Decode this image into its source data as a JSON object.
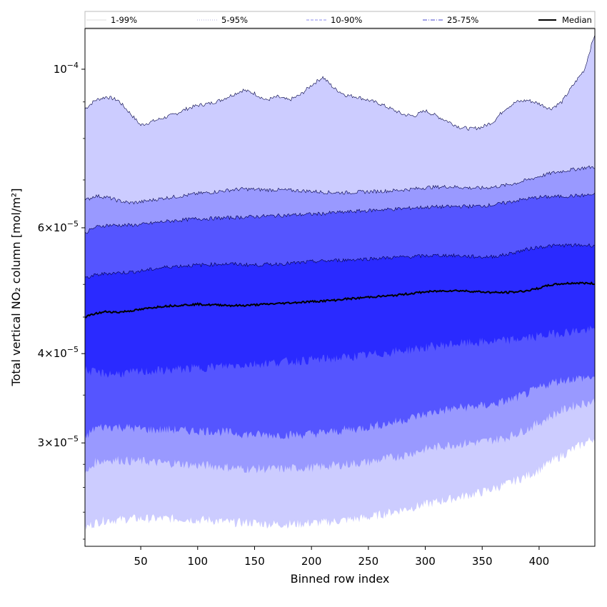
{
  "chart_data": {
    "type": "area",
    "title": "",
    "xlabel": "Binned row index",
    "ylabel": "Total vertical NO₂ column [mol/m²]",
    "xlim": [
      1,
      449
    ],
    "ylim": [
      2.15e-05,
      0.000114
    ],
    "yscale": "log",
    "x_ticks": [
      50,
      100,
      150,
      200,
      250,
      300,
      350,
      400
    ],
    "y_ticks": [
      {
        "value": 3e-05,
        "mantissa": "3",
        "times": "×",
        "base": "10",
        "exp": "−5"
      },
      {
        "value": 4e-05,
        "mantissa": "4",
        "times": "×",
        "base": "10",
        "exp": "−5"
      },
      {
        "value": 6e-05,
        "mantissa": "6",
        "times": "×",
        "base": "10",
        "exp": "−5"
      },
      {
        "value": 0.0001,
        "mantissa": "",
        "times": "",
        "base": "10",
        "exp": "−4"
      }
    ],
    "y_minor_ticks": [
      2.2e-05,
      2.4e-05,
      2.6e-05,
      2.8e-05,
      3.5e-05,
      4.5e-05,
      5e-05,
      7e-05,
      8e-05,
      9e-05
    ],
    "x": [
      1,
      10,
      20,
      30,
      40,
      50,
      60,
      70,
      80,
      90,
      100,
      110,
      120,
      130,
      140,
      150,
      160,
      170,
      180,
      190,
      200,
      210,
      220,
      230,
      240,
      250,
      260,
      270,
      280,
      290,
      300,
      310,
      320,
      330,
      340,
      350,
      360,
      370,
      380,
      390,
      400,
      410,
      420,
      430,
      440,
      449
    ],
    "series": [
      {
        "name": "1-99%",
        "color": "#ccccff",
        "lower": [
          2.28e-05,
          2.32e-05,
          2.34e-05,
          2.34e-05,
          2.35e-05,
          2.35e-05,
          2.35e-05,
          2.35e-05,
          2.35e-05,
          2.35e-05,
          2.34e-05,
          2.34e-05,
          2.33e-05,
          2.32e-05,
          2.32e-05,
          2.32e-05,
          2.31e-05,
          2.31e-05,
          2.31e-05,
          2.31e-05,
          2.32e-05,
          2.32e-05,
          2.33e-05,
          2.34e-05,
          2.35e-05,
          2.36e-05,
          2.38e-05,
          2.4e-05,
          2.42e-05,
          2.44e-05,
          2.46e-05,
          2.48e-05,
          2.5e-05,
          2.52e-05,
          2.54e-05,
          2.56e-05,
          2.59e-05,
          2.62e-05,
          2.66e-05,
          2.7e-05,
          2.75e-05,
          2.82e-05,
          2.88e-05,
          2.94e-05,
          3e-05,
          3.05e-05
        ],
        "upper": [
          8.8e-05,
          9.05e-05,
          9.15e-05,
          9.05e-05,
          8.7e-05,
          8.35e-05,
          8.45e-05,
          8.55e-05,
          8.65e-05,
          8.8e-05,
          8.9e-05,
          8.95e-05,
          9.05e-05,
          9.2e-05,
          9.35e-05,
          9.25e-05,
          9.05e-05,
          9.15e-05,
          9.05e-05,
          9.2e-05,
          9.5e-05,
          9.75e-05,
          9.4e-05,
          9.2e-05,
          9.15e-05,
          9.05e-05,
          8.95e-05,
          8.8e-05,
          8.65e-05,
          8.6e-05,
          8.75e-05,
          8.6e-05,
          8.45e-05,
          8.3e-05,
          8.25e-05,
          8.3e-05,
          8.45e-05,
          8.8e-05,
          9e-05,
          9.05e-05,
          8.95e-05,
          8.8e-05,
          9e-05,
          9.5e-05,
          0.0001,
          0.000112
        ]
      },
      {
        "name": "5-95%",
        "color": "#9999ff",
        "lower": [
          2.7e-05,
          2.82e-05,
          2.84e-05,
          2.84e-05,
          2.83e-05,
          2.83e-05,
          2.82e-05,
          2.81e-05,
          2.81e-05,
          2.8e-05,
          2.79e-05,
          2.79e-05,
          2.78e-05,
          2.77e-05,
          2.76e-05,
          2.76e-05,
          2.76e-05,
          2.76e-05,
          2.76e-05,
          2.77e-05,
          2.77e-05,
          2.78e-05,
          2.79e-05,
          2.8e-05,
          2.81e-05,
          2.82e-05,
          2.84e-05,
          2.86e-05,
          2.88e-05,
          2.91e-05,
          2.94e-05,
          2.96e-05,
          2.98e-05,
          2.99e-05,
          3e-05,
          3.01e-05,
          3.03e-05,
          3.05e-05,
          3.09e-05,
          3.14e-05,
          3.2e-05,
          3.27e-05,
          3.33e-05,
          3.38e-05,
          3.41e-05,
          3.43e-05
        ],
        "upper": [
          6.55e-05,
          6.65e-05,
          6.62e-05,
          6.55e-05,
          6.5e-05,
          6.52e-05,
          6.56e-05,
          6.6e-05,
          6.63e-05,
          6.66e-05,
          6.7e-05,
          6.72e-05,
          6.75e-05,
          6.78e-05,
          6.8e-05,
          6.79e-05,
          6.78e-05,
          6.78e-05,
          6.77e-05,
          6.76e-05,
          6.75e-05,
          6.73e-05,
          6.72e-05,
          6.72e-05,
          6.73e-05,
          6.74e-05,
          6.75e-05,
          6.76e-05,
          6.78e-05,
          6.8e-05,
          6.83e-05,
          6.84e-05,
          6.85e-05,
          6.84e-05,
          6.82e-05,
          6.82e-05,
          6.84e-05,
          6.88e-05,
          6.93e-05,
          7e-05,
          7.08e-05,
          7.15e-05,
          7.2e-05,
          7.24e-05,
          7.28e-05,
          7.3e-05
        ]
      },
      {
        "name": "10-90%",
        "color": "#5555ff",
        "lower": [
          3.05e-05,
          3.15e-05,
          3.16e-05,
          3.16e-05,
          3.15e-05,
          3.14e-05,
          3.13e-05,
          3.13e-05,
          3.13e-05,
          3.12e-05,
          3.12e-05,
          3.12e-05,
          3.11e-05,
          3.1e-05,
          3.09e-05,
          3.08e-05,
          3.08e-05,
          3.08e-05,
          3.08e-05,
          3.08e-05,
          3.09e-05,
          3.1e-05,
          3.11e-05,
          3.13e-05,
          3.14e-05,
          3.16e-05,
          3.18e-05,
          3.2e-05,
          3.23e-05,
          3.26e-05,
          3.29e-05,
          3.32e-05,
          3.34e-05,
          3.36e-05,
          3.37e-05,
          3.38e-05,
          3.4e-05,
          3.43e-05,
          3.47e-05,
          3.52e-05,
          3.58e-05,
          3.64e-05,
          3.67e-05,
          3.69e-05,
          3.7e-05,
          3.71e-05
        ],
        "upper": [
          5.9e-05,
          6.01e-05,
          6.05e-05,
          6.05e-05,
          6.05e-05,
          6.06e-05,
          6.09e-05,
          6.12e-05,
          6.14e-05,
          6.16e-05,
          6.18e-05,
          6.18e-05,
          6.19e-05,
          6.2e-05,
          6.21e-05,
          6.22e-05,
          6.23e-05,
          6.24e-05,
          6.25e-05,
          6.26e-05,
          6.27e-05,
          6.28e-05,
          6.3e-05,
          6.31e-05,
          6.33e-05,
          6.34e-05,
          6.36e-05,
          6.37e-05,
          6.38e-05,
          6.4e-05,
          6.41e-05,
          6.42e-05,
          6.42e-05,
          6.43e-05,
          6.43e-05,
          6.44e-05,
          6.46e-05,
          6.5e-05,
          6.55e-05,
          6.59e-05,
          6.62e-05,
          6.63e-05,
          6.64e-05,
          6.65e-05,
          6.66e-05,
          6.68e-05
        ]
      },
      {
        "name": "25-75%",
        "color": "#2a2aff",
        "lower": [
          3.8e-05,
          3.76e-05,
          3.75e-05,
          3.75e-05,
          3.76e-05,
          3.77e-05,
          3.78e-05,
          3.79e-05,
          3.8e-05,
          3.81e-05,
          3.82e-05,
          3.83e-05,
          3.84e-05,
          3.85e-05,
          3.86e-05,
          3.87e-05,
          3.88e-05,
          3.89e-05,
          3.9e-05,
          3.91e-05,
          3.92e-05,
          3.93e-05,
          3.94e-05,
          3.95e-05,
          3.97e-05,
          3.98e-05,
          4e-05,
          4.02e-05,
          4.04e-05,
          4.06e-05,
          4.08e-05,
          4.1e-05,
          4.12e-05,
          4.13e-05,
          4.14e-05,
          4.15e-05,
          4.16e-05,
          4.17e-05,
          4.19e-05,
          4.21e-05,
          4.23e-05,
          4.26e-05,
          4.28e-05,
          4.3e-05,
          4.31e-05,
          4.32e-05
        ],
        "upper": [
          5.1e-05,
          5.15e-05,
          5.18e-05,
          5.19e-05,
          5.2e-05,
          5.22e-05,
          5.25e-05,
          5.28e-05,
          5.3e-05,
          5.31e-05,
          5.32e-05,
          5.33e-05,
          5.34e-05,
          5.34e-05,
          5.33e-05,
          5.32e-05,
          5.33e-05,
          5.34e-05,
          5.35e-05,
          5.36e-05,
          5.38e-05,
          5.39e-05,
          5.4e-05,
          5.41e-05,
          5.42e-05,
          5.43e-05,
          5.44e-05,
          5.45e-05,
          5.46e-05,
          5.47e-05,
          5.48e-05,
          5.49e-05,
          5.49e-05,
          5.48e-05,
          5.47e-05,
          5.46e-05,
          5.47e-05,
          5.5e-05,
          5.55e-05,
          5.6e-05,
          5.64e-05,
          5.66e-05,
          5.67e-05,
          5.67e-05,
          5.67e-05,
          5.67e-05
        ]
      },
      {
        "name": "Median",
        "color": "#000000",
        "values": [
          4.5e-05,
          4.55e-05,
          4.58e-05,
          4.57e-05,
          4.59e-05,
          4.61e-05,
          4.64e-05,
          4.66e-05,
          4.67e-05,
          4.68e-05,
          4.69e-05,
          4.68e-05,
          4.68e-05,
          4.67e-05,
          4.67e-05,
          4.68e-05,
          4.69e-05,
          4.7e-05,
          4.71e-05,
          4.72e-05,
          4.73e-05,
          4.74e-05,
          4.75e-05,
          4.77e-05,
          4.78e-05,
          4.8e-05,
          4.81e-05,
          4.82e-05,
          4.84e-05,
          4.86e-05,
          4.88e-05,
          4.89e-05,
          4.9e-05,
          4.9e-05,
          4.89e-05,
          4.88e-05,
          4.87e-05,
          4.87e-05,
          4.88e-05,
          4.9e-05,
          4.94e-05,
          4.99e-05,
          5.01e-05,
          5.02e-05,
          5.02e-05,
          5.01e-05
        ]
      }
    ],
    "legend": {
      "placement": "top",
      "entries": [
        {
          "label": "1-99%",
          "color": "#dddddd",
          "style": "solid"
        },
        {
          "label": "5-95%",
          "color": "#b0b0dd",
          "style": "dotted"
        },
        {
          "label": "10-90%",
          "color": "#8888ee",
          "style": "dashed"
        },
        {
          "label": "25-75%",
          "color": "#4444cc",
          "style": "dashdot"
        },
        {
          "label": "Median",
          "color": "#000000",
          "style": "solid-bold"
        }
      ]
    }
  }
}
